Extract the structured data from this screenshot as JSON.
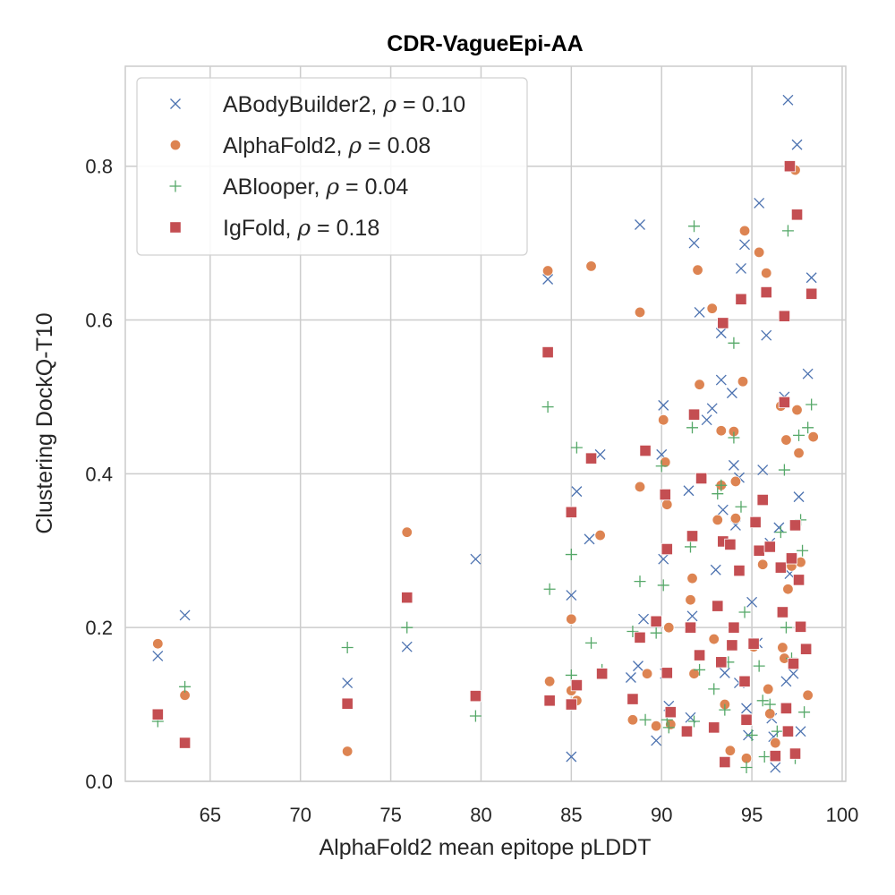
{
  "chart_data": {
    "type": "scatter",
    "title": "CDR-VagueEpi-AA",
    "xlabel": "AlphaFold2 mean epitope pLDDT",
    "ylabel": "Clustering DockQ-T10",
    "xlim": [
      60.3,
      100.2
    ],
    "ylim": [
      0.0,
      0.93
    ],
    "xticks": [
      65,
      70,
      75,
      80,
      85,
      90,
      95,
      100
    ],
    "yticks": [
      0.0,
      0.2,
      0.4,
      0.6,
      0.8
    ],
    "xtick_labels": [
      "65",
      "70",
      "75",
      "80",
      "85",
      "90",
      "95",
      "100"
    ],
    "ytick_labels": [
      "0.0",
      "0.2",
      "0.4",
      "0.6",
      "0.8"
    ],
    "grid": true,
    "legend_position": "upper-left",
    "series": [
      {
        "name": "ABodyBuilder2",
        "rho_symbol": "ρ",
        "rho_text": " = 0.10",
        "marker": "x",
        "color": "#4c72b0",
        "points": [
          [
            62.1,
            0.163
          ],
          [
            63.6,
            0.216
          ],
          [
            72.6,
            0.128
          ],
          [
            75.9,
            0.175
          ],
          [
            79.7,
            0.289
          ],
          [
            83.7,
            0.653
          ],
          [
            85.0,
            0.242
          ],
          [
            85.0,
            0.032
          ],
          [
            85.3,
            0.377
          ],
          [
            86.0,
            0.315
          ],
          [
            86.6,
            0.425
          ],
          [
            88.3,
            0.135
          ],
          [
            88.7,
            0.15
          ],
          [
            88.8,
            0.724
          ],
          [
            89.0,
            0.211
          ],
          [
            89.7,
            0.053
          ],
          [
            90.0,
            0.425
          ],
          [
            90.1,
            0.489
          ],
          [
            90.1,
            0.289
          ],
          [
            90.2,
            0.14
          ],
          [
            90.4,
            0.098
          ],
          [
            91.5,
            0.378
          ],
          [
            91.6,
            0.083
          ],
          [
            91.7,
            0.215
          ],
          [
            91.8,
            0.7
          ],
          [
            92.1,
            0.61
          ],
          [
            92.5,
            0.47
          ],
          [
            92.8,
            0.485
          ],
          [
            93.0,
            0.275
          ],
          [
            93.3,
            0.522
          ],
          [
            93.3,
            0.583
          ],
          [
            93.4,
            0.353
          ],
          [
            93.5,
            0.141
          ],
          [
            93.9,
            0.505
          ],
          [
            94.0,
            0.411
          ],
          [
            94.1,
            0.333
          ],
          [
            94.3,
            0.395
          ],
          [
            94.4,
            0.667
          ],
          [
            94.6,
            0.698
          ],
          [
            94.7,
            0.095
          ],
          [
            94.8,
            0.06
          ],
          [
            95.0,
            0.233
          ],
          [
            95.3,
            0.18
          ],
          [
            95.4,
            0.752
          ],
          [
            95.6,
            0.405
          ],
          [
            95.8,
            0.58
          ],
          [
            96.0,
            0.31
          ],
          [
            96.2,
            0.058
          ],
          [
            96.3,
            0.018
          ],
          [
            96.5,
            0.33
          ],
          [
            96.8,
            0.5
          ],
          [
            96.9,
            0.13
          ],
          [
            97.0,
            0.886
          ],
          [
            97.1,
            0.27
          ],
          [
            97.3,
            0.14
          ],
          [
            97.5,
            0.828
          ],
          [
            97.6,
            0.37
          ],
          [
            97.7,
            0.065
          ],
          [
            98.1,
            0.53
          ],
          [
            98.3,
            0.655
          ],
          [
            94.3,
            0.128
          ],
          [
            96.1,
            0.082
          ]
        ]
      },
      {
        "name": "AlphaFold2",
        "rho_symbol": "ρ",
        "rho_text": " = 0.08",
        "marker": "circle",
        "color": "#dd8452",
        "points": [
          [
            62.1,
            0.179
          ],
          [
            63.6,
            0.112
          ],
          [
            72.6,
            0.039
          ],
          [
            75.9,
            0.324
          ],
          [
            83.7,
            0.664
          ],
          [
            83.8,
            0.13
          ],
          [
            85.0,
            0.211
          ],
          [
            85.0,
            0.118
          ],
          [
            85.3,
            0.105
          ],
          [
            86.1,
            0.67
          ],
          [
            86.6,
            0.32
          ],
          [
            88.4,
            0.08
          ],
          [
            88.8,
            0.61
          ],
          [
            88.8,
            0.383
          ],
          [
            89.2,
            0.14
          ],
          [
            89.7,
            0.072
          ],
          [
            90.1,
            0.47
          ],
          [
            90.2,
            0.415
          ],
          [
            90.3,
            0.36
          ],
          [
            90.4,
            0.2
          ],
          [
            90.5,
            0.074
          ],
          [
            91.6,
            0.236
          ],
          [
            91.7,
            0.264
          ],
          [
            91.8,
            0.14
          ],
          [
            92.0,
            0.665
          ],
          [
            92.1,
            0.516
          ],
          [
            92.8,
            0.615
          ],
          [
            92.9,
            0.185
          ],
          [
            93.1,
            0.34
          ],
          [
            93.3,
            0.456
          ],
          [
            93.3,
            0.385
          ],
          [
            93.5,
            0.1
          ],
          [
            93.8,
            0.04
          ],
          [
            94.0,
            0.455
          ],
          [
            94.1,
            0.39
          ],
          [
            94.1,
            0.342
          ],
          [
            94.5,
            0.52
          ],
          [
            94.6,
            0.716
          ],
          [
            94.7,
            0.03
          ],
          [
            95.1,
            0.175
          ],
          [
            95.4,
            0.688
          ],
          [
            95.6,
            0.282
          ],
          [
            95.8,
            0.661
          ],
          [
            96.0,
            0.088
          ],
          [
            96.3,
            0.05
          ],
          [
            96.6,
            0.488
          ],
          [
            96.7,
            0.174
          ],
          [
            96.9,
            0.444
          ],
          [
            97.0,
            0.25
          ],
          [
            97.2,
            0.28
          ],
          [
            97.4,
            0.795
          ],
          [
            97.5,
            0.483
          ],
          [
            97.6,
            0.427
          ],
          [
            97.7,
            0.285
          ],
          [
            98.1,
            0.112
          ],
          [
            98.4,
            0.448
          ],
          [
            96.8,
            0.16
          ],
          [
            95.9,
            0.12
          ]
        ]
      },
      {
        "name": "ABlooper",
        "rho_symbol": "ρ",
        "rho_text": " = 0.04",
        "marker": "plus",
        "color": "#55a868",
        "points": [
          [
            62.1,
            0.078
          ],
          [
            63.6,
            0.123
          ],
          [
            72.6,
            0.174
          ],
          [
            75.9,
            0.2
          ],
          [
            79.7,
            0.085
          ],
          [
            83.7,
            0.487
          ],
          [
            83.8,
            0.25
          ],
          [
            85.0,
            0.295
          ],
          [
            85.0,
            0.138
          ],
          [
            85.3,
            0.434
          ],
          [
            86.1,
            0.18
          ],
          [
            86.7,
            0.145
          ],
          [
            88.4,
            0.195
          ],
          [
            88.8,
            0.26
          ],
          [
            89.1,
            0.08
          ],
          [
            89.7,
            0.193
          ],
          [
            90.0,
            0.41
          ],
          [
            90.1,
            0.255
          ],
          [
            90.3,
            0.08
          ],
          [
            90.4,
            0.07
          ],
          [
            91.6,
            0.305
          ],
          [
            91.7,
            0.46
          ],
          [
            91.8,
            0.722
          ],
          [
            91.8,
            0.078
          ],
          [
            92.1,
            0.145
          ],
          [
            92.9,
            0.12
          ],
          [
            93.1,
            0.374
          ],
          [
            93.3,
            0.385
          ],
          [
            93.5,
            0.093
          ],
          [
            93.7,
            0.155
          ],
          [
            94.0,
            0.57
          ],
          [
            94.0,
            0.447
          ],
          [
            94.4,
            0.357
          ],
          [
            94.6,
            0.22
          ],
          [
            94.7,
            0.018
          ],
          [
            95.0,
            0.06
          ],
          [
            95.4,
            0.15
          ],
          [
            95.7,
            0.032
          ],
          [
            96.0,
            0.1
          ],
          [
            96.4,
            0.065
          ],
          [
            96.6,
            0.324
          ],
          [
            96.8,
            0.405
          ],
          [
            97.0,
            0.716
          ],
          [
            97.2,
            0.16
          ],
          [
            97.4,
            0.03
          ],
          [
            97.6,
            0.45
          ],
          [
            97.7,
            0.34
          ],
          [
            97.8,
            0.3
          ],
          [
            98.1,
            0.46
          ],
          [
            98.3,
            0.49
          ],
          [
            96.9,
            0.2
          ],
          [
            95.6,
            0.105
          ],
          [
            97.9,
            0.09
          ]
        ]
      },
      {
        "name": "IgFold",
        "rho_symbol": "ρ",
        "rho_text": " = 0.18",
        "marker": "square",
        "color": "#c44e52",
        "points": [
          [
            62.1,
            0.087
          ],
          [
            63.6,
            0.05
          ],
          [
            72.6,
            0.101
          ],
          [
            75.9,
            0.239
          ],
          [
            79.7,
            0.111
          ],
          [
            83.7,
            0.558
          ],
          [
            83.8,
            0.105
          ],
          [
            85.0,
            0.35
          ],
          [
            85.0,
            0.1
          ],
          [
            85.3,
            0.125
          ],
          [
            86.1,
            0.42
          ],
          [
            86.7,
            0.14
          ],
          [
            88.4,
            0.107
          ],
          [
            88.8,
            0.187
          ],
          [
            89.1,
            0.43
          ],
          [
            89.7,
            0.208
          ],
          [
            90.2,
            0.373
          ],
          [
            90.3,
            0.302
          ],
          [
            90.3,
            0.141
          ],
          [
            90.5,
            0.09
          ],
          [
            91.4,
            0.065
          ],
          [
            91.6,
            0.2
          ],
          [
            91.7,
            0.319
          ],
          [
            91.8,
            0.477
          ],
          [
            92.1,
            0.164
          ],
          [
            92.2,
            0.394
          ],
          [
            92.9,
            0.07
          ],
          [
            93.1,
            0.228
          ],
          [
            93.3,
            0.155
          ],
          [
            93.4,
            0.596
          ],
          [
            93.4,
            0.312
          ],
          [
            93.5,
            0.025
          ],
          [
            93.8,
            0.308
          ],
          [
            93.9,
            0.177
          ],
          [
            94.0,
            0.2
          ],
          [
            94.3,
            0.274
          ],
          [
            94.4,
            0.627
          ],
          [
            94.6,
            0.13
          ],
          [
            94.7,
            0.08
          ],
          [
            95.1,
            0.179
          ],
          [
            95.2,
            0.337
          ],
          [
            95.4,
            0.3
          ],
          [
            95.6,
            0.366
          ],
          [
            95.8,
            0.636
          ],
          [
            96.0,
            0.305
          ],
          [
            96.3,
            0.033
          ],
          [
            96.6,
            0.278
          ],
          [
            96.7,
            0.22
          ],
          [
            96.8,
            0.605
          ],
          [
            96.8,
            0.493
          ],
          [
            96.9,
            0.095
          ],
          [
            97.1,
            0.8
          ],
          [
            97.2,
            0.29
          ],
          [
            97.3,
            0.153
          ],
          [
            97.4,
            0.333
          ],
          [
            97.5,
            0.737
          ],
          [
            97.6,
            0.262
          ],
          [
            97.7,
            0.201
          ],
          [
            98.0,
            0.172
          ],
          [
            98.3,
            0.634
          ],
          [
            97.0,
            0.065
          ],
          [
            97.4,
            0.036
          ]
        ]
      }
    ]
  }
}
